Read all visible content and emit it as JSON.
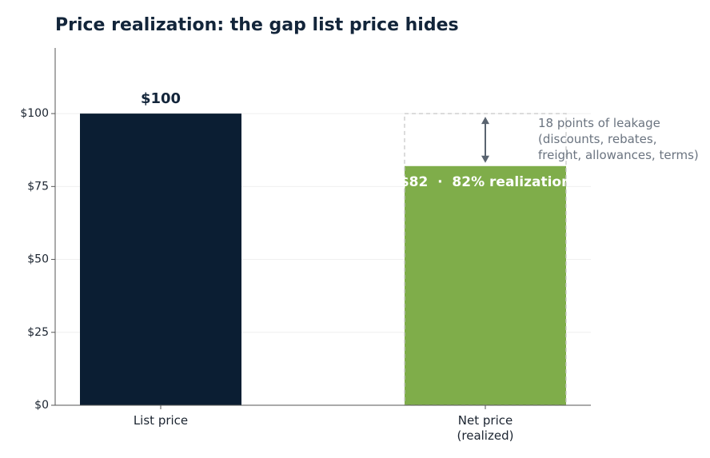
{
  "chart_data": {
    "type": "bar",
    "title": "Price realization: the gap list price hides",
    "categories": [
      "List price",
      "Net price\n(realized)"
    ],
    "values": [
      100,
      82
    ],
    "value_labels": [
      "$100",
      "$82  ·  82% realization"
    ],
    "colors": [
      "#0b1e33",
      "#7fad4a"
    ],
    "ylim": [
      0,
      122.5
    ],
    "yticks": [
      {
        "value": 0,
        "label": "$0"
      },
      {
        "value": 25,
        "label": "$25"
      },
      {
        "value": 50,
        "label": "$50"
      },
      {
        "value": 75,
        "label": "$75"
      },
      {
        "value": 100,
        "label": "$100"
      }
    ],
    "grid": true,
    "annotation": "18 points of leakage\n(discounts, rebates,\nfreight, allowances, terms)"
  }
}
